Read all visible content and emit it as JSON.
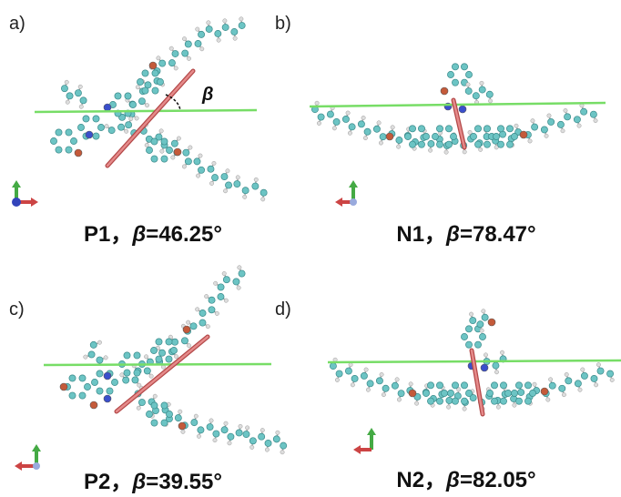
{
  "panels": [
    {
      "label": "a)",
      "caption": {
        "name": "P1，",
        "symbol": "β",
        "value": "=46.25°"
      },
      "angle_label": "β"
    },
    {
      "label": "b)",
      "caption": {
        "name": "N1，",
        "symbol": "β",
        "value": "=78.47°"
      }
    },
    {
      "label": "c)",
      "caption": {
        "name": "P2，",
        "symbol": "β",
        "value": "=39.55°"
      }
    },
    {
      "label": "d)",
      "caption": {
        "name": "N2，",
        "symbol": "β",
        "value": "=82.05°"
      }
    }
  ]
}
